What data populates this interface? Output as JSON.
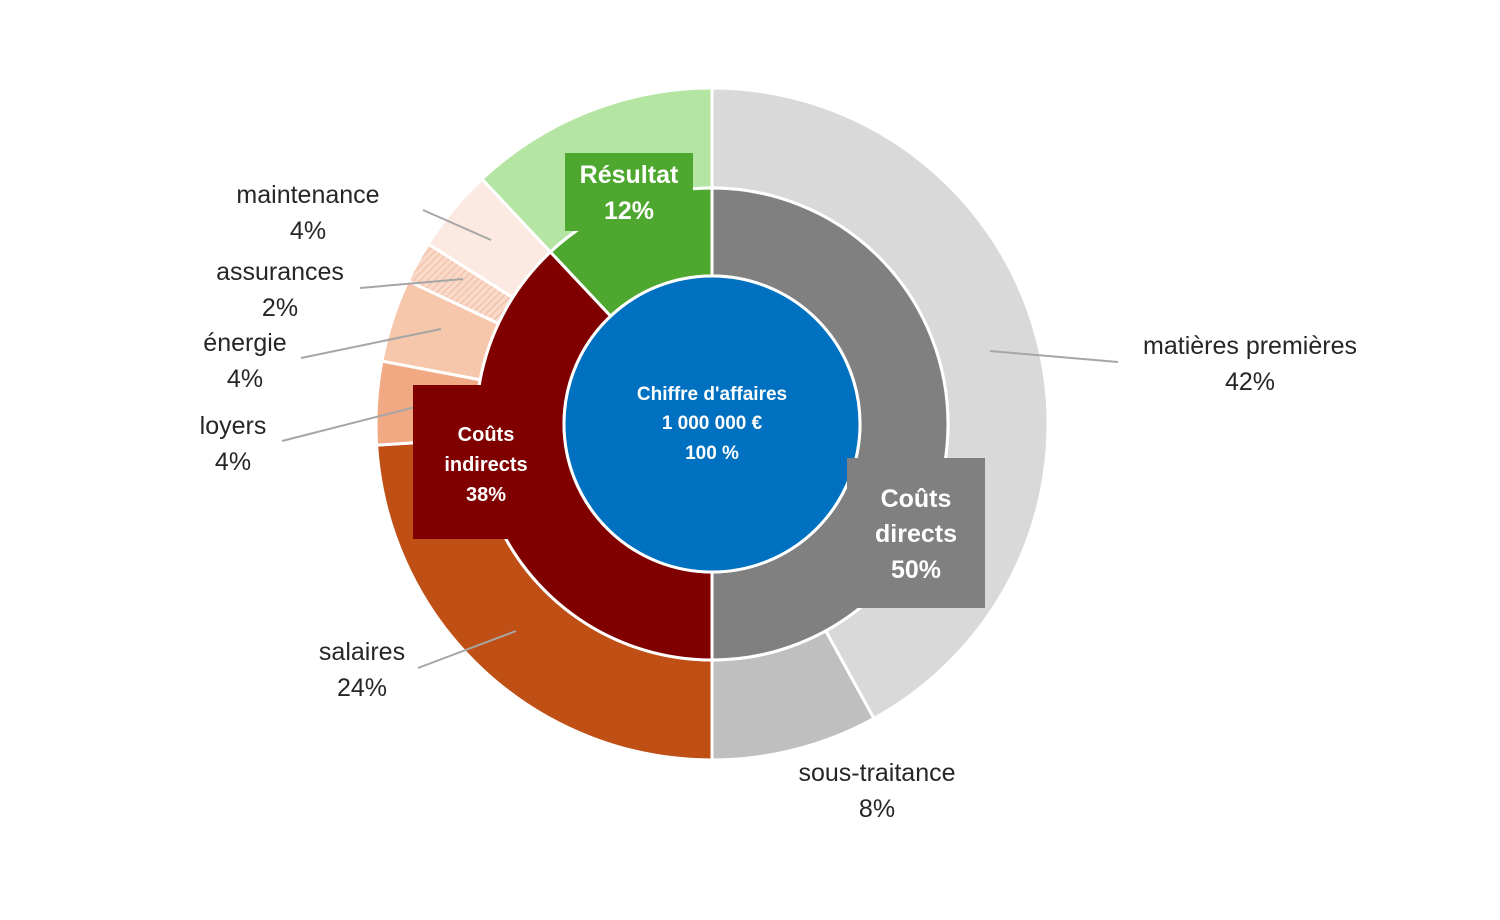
{
  "chart_data": {
    "type": "sunburst",
    "center": {
      "label": "Chiffre d'affaires",
      "value": "1 000 000 €",
      "percent": "100 %",
      "color": "#0070C0"
    },
    "inner_ring": [
      {
        "name": "Coûts directs",
        "value": 50,
        "pct_label": "50%",
        "color": "#808080"
      },
      {
        "name": "Coûts indirects",
        "value": 38,
        "pct_label": "38%",
        "color": "#800000"
      },
      {
        "name": "Résultat",
        "value": 12,
        "pct_label": "12%",
        "color": "#4EA72E"
      }
    ],
    "outer_ring": [
      {
        "name": "matières premières",
        "value": 42,
        "pct_label": "42%",
        "parent": "Coûts directs",
        "color": "#D9D9D9"
      },
      {
        "name": "sous-traitance",
        "value": 8,
        "pct_label": "8%",
        "parent": "Coûts directs",
        "color": "#BFBFBF"
      },
      {
        "name": "salaires",
        "value": 24,
        "pct_label": "24%",
        "parent": "Coûts indirects",
        "color": "#C04F15"
      },
      {
        "name": "loyers",
        "value": 4,
        "pct_label": "4%",
        "parent": "Coûts indirects",
        "color": "#F1A983"
      },
      {
        "name": "énergie",
        "value": 4,
        "pct_label": "4%",
        "parent": "Coûts indirects",
        "color": "#F7C7AC"
      },
      {
        "name": "assurances",
        "value": 2,
        "pct_label": "2%",
        "parent": "Coûts indirects",
        "color": "#FAD9C8",
        "pattern": true
      },
      {
        "name": "maintenance",
        "value": 4,
        "pct_label": "4%",
        "parent": "Coûts indirects",
        "color": "#FBE9E2"
      },
      {
        "name": "",
        "value": 12,
        "pct_label": "",
        "parent": "Résultat",
        "color": "#B4E5A2"
      }
    ]
  }
}
